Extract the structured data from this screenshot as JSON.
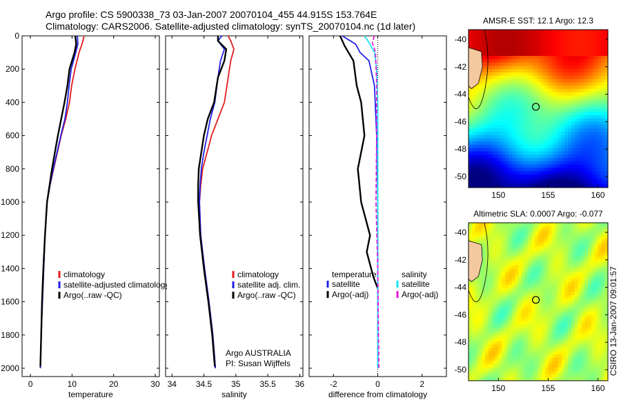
{
  "header": {
    "line1": "Argo profile: CS 5900338_73 03-Jan-2007 20070104_455 44.915S 153.764E",
    "line2": "Climatology: CARS2006. Satellite-adjusted climatology: synTS_20070104.nc (1d later)"
  },
  "colors": {
    "climatology": "#e31a1c",
    "satellite": "#1f1fe6",
    "argo": "#000000",
    "salinity_satellite": "#19e5f0",
    "salinity_argo": "#e619d8"
  },
  "chart_data": [
    {
      "type": "line",
      "id": "temperature",
      "xlabel": "temperature",
      "ylabel": "",
      "xlim": [
        -2,
        31
      ],
      "ylim": [
        2050,
        0
      ],
      "xticks": [
        0,
        10,
        20,
        30
      ],
      "xtick_labels": [
        "0",
        "10",
        "20",
        "30"
      ],
      "yticks": [
        0,
        200,
        400,
        600,
        800,
        1000,
        1200,
        1400,
        1600,
        1800,
        2000
      ],
      "ytick_labels": [
        "0",
        "200",
        "400",
        "600",
        "800",
        "1000",
        "1200",
        "1400",
        "1600",
        "1800",
        "2000"
      ],
      "legend": [
        "climatology",
        "satellite-adjusted climatology",
        "Argo(..raw -QC)"
      ],
      "series": [
        {
          "name": "climatology",
          "color_key": "climatology",
          "x": [
            12.9,
            12.4,
            11.7,
            10.7,
            9.9,
            9.4,
            8.5,
            7.4,
            6.5,
            5.6,
            4.7,
            4.0,
            3.5,
            3.2,
            2.9,
            2.6,
            2.4
          ],
          "y": [
            0,
            50,
            100,
            200,
            300,
            400,
            500,
            600,
            700,
            800,
            900,
            1000,
            1200,
            1400,
            1600,
            1800,
            2000
          ]
        },
        {
          "name": "satellite",
          "color_key": "satellite",
          "x": [
            11.3,
            11.4,
            10.9,
            9.8,
            9.3,
            8.9,
            8.3,
            7.3,
            6.4,
            5.5,
            4.7,
            4.0,
            3.5,
            3.2,
            2.9,
            2.6,
            2.4
          ],
          "y": [
            0,
            50,
            100,
            200,
            300,
            400,
            500,
            600,
            700,
            800,
            900,
            1000,
            1200,
            1400,
            1600,
            1800,
            2000
          ]
        },
        {
          "name": "argo",
          "color_key": "argo",
          "x": [
            10.8,
            11.0,
            10.6,
            9.4,
            8.9,
            8.2,
            7.4,
            6.6,
            5.9,
            5.2,
            4.6,
            4.0,
            3.5,
            3.1,
            2.8,
            2.6,
            2.4
          ],
          "y": [
            0,
            50,
            100,
            200,
            300,
            400,
            500,
            600,
            700,
            800,
            900,
            1000,
            1200,
            1400,
            1600,
            1800,
            1990
          ]
        }
      ]
    },
    {
      "type": "line",
      "id": "salinity",
      "xlabel": "salinity",
      "xlim": [
        33.9,
        36.05
      ],
      "ylim": [
        2050,
        0
      ],
      "xticks": [
        34,
        34.5,
        35,
        35.5,
        36
      ],
      "xtick_labels": [
        "34",
        "34.5",
        "35",
        "35.5",
        "36"
      ],
      "legend": [
        "climatology",
        "satellite adj. clim.",
        "Argo(..raw -QC)"
      ],
      "annotation": [
        "Argo AUSTRALIA",
        "PI: Susan Wijffels"
      ],
      "series": [
        {
          "name": "climatology",
          "color_key": "climatology",
          "x": [
            34.88,
            34.92,
            34.97,
            34.92,
            34.88,
            34.82,
            34.72,
            34.62,
            34.55,
            34.48,
            34.45,
            34.43,
            34.45,
            34.51,
            34.58,
            34.64,
            34.68
          ],
          "y": [
            0,
            30,
            80,
            150,
            250,
            400,
            500,
            600,
            700,
            800,
            900,
            1000,
            1200,
            1400,
            1600,
            1800,
            2000
          ]
        },
        {
          "name": "satellite",
          "color_key": "satellite",
          "x": [
            34.78,
            34.72,
            34.82,
            34.76,
            34.72,
            34.67,
            34.6,
            34.55,
            34.5,
            34.46,
            34.44,
            34.43,
            34.45,
            34.51,
            34.58,
            34.64,
            34.68
          ],
          "y": [
            0,
            30,
            80,
            150,
            250,
            400,
            500,
            600,
            700,
            800,
            900,
            1000,
            1200,
            1400,
            1600,
            1800,
            2000
          ]
        },
        {
          "name": "argo",
          "color_key": "argo",
          "x": [
            34.72,
            34.72,
            34.85,
            34.82,
            34.72,
            34.66,
            34.56,
            34.5,
            34.46,
            34.42,
            34.41,
            34.41,
            34.44,
            34.5,
            34.57,
            34.63,
            34.67
          ],
          "y": [
            0,
            30,
            80,
            150,
            250,
            400,
            500,
            600,
            700,
            800,
            900,
            1000,
            1200,
            1400,
            1600,
            1800,
            1990
          ]
        }
      ]
    },
    {
      "type": "line",
      "id": "difference",
      "xlabel": "difference from climatology",
      "xlim": [
        -3.1,
        3.1
      ],
      "ylim": [
        2050,
        0
      ],
      "xticks": [
        -2,
        0,
        2
      ],
      "xtick_labels": [
        "-2",
        "0",
        "2"
      ],
      "legend_temperature": {
        "title": "temperature",
        "items": [
          "satellite",
          "Argo(-adj)"
        ]
      },
      "legend_salinity": {
        "title": "salinity",
        "items": [
          "satellite",
          "Argo(-adj)"
        ]
      },
      "series": [
        {
          "name": "temperature satellite",
          "color_key": "satellite",
          "x": [
            -1.6,
            -1.0,
            -0.8,
            -0.4,
            -0.15,
            -0.05,
            0,
            0,
            0,
            0
          ],
          "y": [
            0,
            50,
            100,
            150,
            300,
            600,
            1000,
            1400,
            1800,
            2000
          ]
        },
        {
          "name": "temperature argo",
          "color_key": "argo",
          "x": [
            -1.7,
            -1.5,
            -1.1,
            -0.95,
            -0.75,
            -0.6,
            -0.9,
            -0.75,
            -0.35,
            -0.5,
            -0.2,
            0
          ],
          "y": [
            0,
            60,
            150,
            300,
            400,
            600,
            800,
            1000,
            1200,
            1300,
            1450,
            1520
          ]
        },
        {
          "name": "salinity satellite",
          "color_key": "salinity_satellite",
          "x": [
            -0.6,
            -0.4,
            -0.15,
            -0.05,
            0,
            0,
            0,
            0
          ],
          "y": [
            0,
            40,
            100,
            200,
            400,
            1000,
            1600,
            2000
          ]
        },
        {
          "name": "salinity argo",
          "color_key": "salinity_argo",
          "x": [
            -0.15,
            -0.25,
            -0.1,
            -0.05,
            -0.05,
            -0.08,
            0,
            0.05
          ],
          "y": [
            0,
            40,
            100,
            300,
            600,
            1000,
            1400,
            2000
          ]
        }
      ]
    },
    {
      "type": "heatmap",
      "id": "sst_map",
      "title": "AMSR-E SST: 12.1  Argo: 12.3",
      "xlim": [
        147,
        161
      ],
      "ylim": [
        -50.8,
        -39.3
      ],
      "xticks": [
        150,
        155,
        160
      ],
      "xtick_labels": [
        "150",
        "155",
        "160"
      ],
      "yticks": [
        -40,
        -42,
        -44,
        -46,
        -48,
        -50
      ],
      "ytick_labels": [
        "-40",
        "-42",
        "-44",
        "-46",
        "-48",
        "-50"
      ],
      "marker": {
        "lon": 153.764,
        "lat": -44.915
      },
      "field": "SST warm (north) to cold (south)"
    },
    {
      "type": "heatmap",
      "id": "sla_map",
      "title": "Altimetric SLA: 0.0007  Argo: -0.077",
      "xlim": [
        147,
        161
      ],
      "ylim": [
        -50.8,
        -39.3
      ],
      "xticks": [
        150,
        155,
        160
      ],
      "xtick_labels": [
        "150",
        "155",
        "160"
      ],
      "yticks": [
        -40,
        -42,
        -44,
        -46,
        -48,
        -50
      ],
      "ytick_labels": [
        "-40",
        "-42",
        "-44",
        "-46",
        "-48",
        "-50"
      ],
      "marker": {
        "lon": 153.764,
        "lat": -44.915
      },
      "field": "SLA mostly near zero"
    }
  ],
  "footer": {
    "vertical_credit": "CSIRO 13-Jan-2007 09:01:57"
  }
}
